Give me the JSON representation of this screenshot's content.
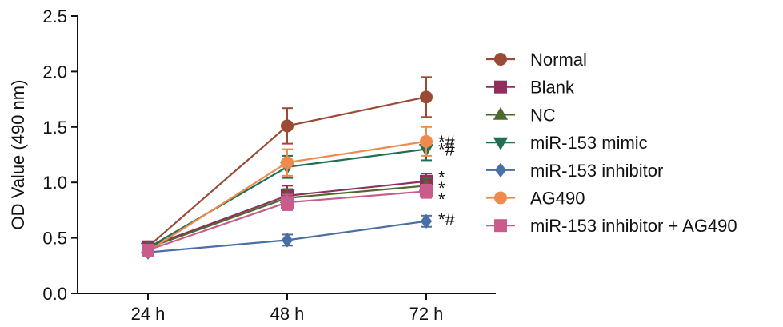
{
  "chart_data": {
    "type": "line",
    "title": "",
    "xlabel": "",
    "ylabel": "OD Value (490 nm)",
    "ylim": [
      0.0,
      2.5
    ],
    "yticks": [
      "0.0",
      "0.5",
      "1.0",
      "1.5",
      "2.0",
      "2.5"
    ],
    "categories": [
      "24 h",
      "48 h",
      "72 h"
    ],
    "grid": false,
    "legend_position": "right",
    "series": [
      {
        "name": "Normal",
        "color": "#9b4a36",
        "marker": "circle",
        "values": [
          0.42,
          1.51,
          1.77
        ],
        "errors": [
          0.03,
          0.16,
          0.18
        ]
      },
      {
        "name": "Blank",
        "color": "#8e2f5e",
        "marker": "square",
        "values": [
          0.42,
          0.88,
          1.01
        ],
        "errors": [
          0.03,
          0.09,
          0.07
        ]
      },
      {
        "name": "NC",
        "color": "#4d6a2c",
        "marker": "triangle-up",
        "values": [
          0.41,
          0.86,
          0.97
        ],
        "errors": [
          0.03,
          0.08,
          0.07
        ]
      },
      {
        "name": "miR-153 mimic",
        "color": "#1f6e55",
        "marker": "triangle-down",
        "values": [
          0.41,
          1.14,
          1.3
        ],
        "errors": [
          0.03,
          0.1,
          0.1
        ]
      },
      {
        "name": "miR-153 inhibitor",
        "color": "#4a6fa5",
        "marker": "diamond",
        "values": [
          0.37,
          0.48,
          0.65
        ],
        "errors": [
          0.03,
          0.05,
          0.05
        ]
      },
      {
        "name": "AG490",
        "color": "#ef8a4c",
        "marker": "circle",
        "values": [
          0.38,
          1.18,
          1.37
        ],
        "errors": [
          0.03,
          0.12,
          0.13
        ]
      },
      {
        "name": "miR-153 inhibitor + AG490",
        "color": "#c95c8c",
        "marker": "square",
        "values": [
          0.39,
          0.82,
          0.92
        ],
        "errors": [
          0.03,
          0.07,
          0.06
        ]
      }
    ],
    "annotations": [
      {
        "category": "72 h",
        "value": 1.37,
        "text": "*#"
      },
      {
        "category": "72 h",
        "value": 1.3,
        "text": "*#"
      },
      {
        "category": "72 h",
        "value": 1.05,
        "text": "*"
      },
      {
        "category": "72 h",
        "value": 0.95,
        "text": "*"
      },
      {
        "category": "72 h",
        "value": 0.85,
        "text": "*"
      },
      {
        "category": "72 h",
        "value": 0.67,
        "text": "*#"
      }
    ]
  }
}
